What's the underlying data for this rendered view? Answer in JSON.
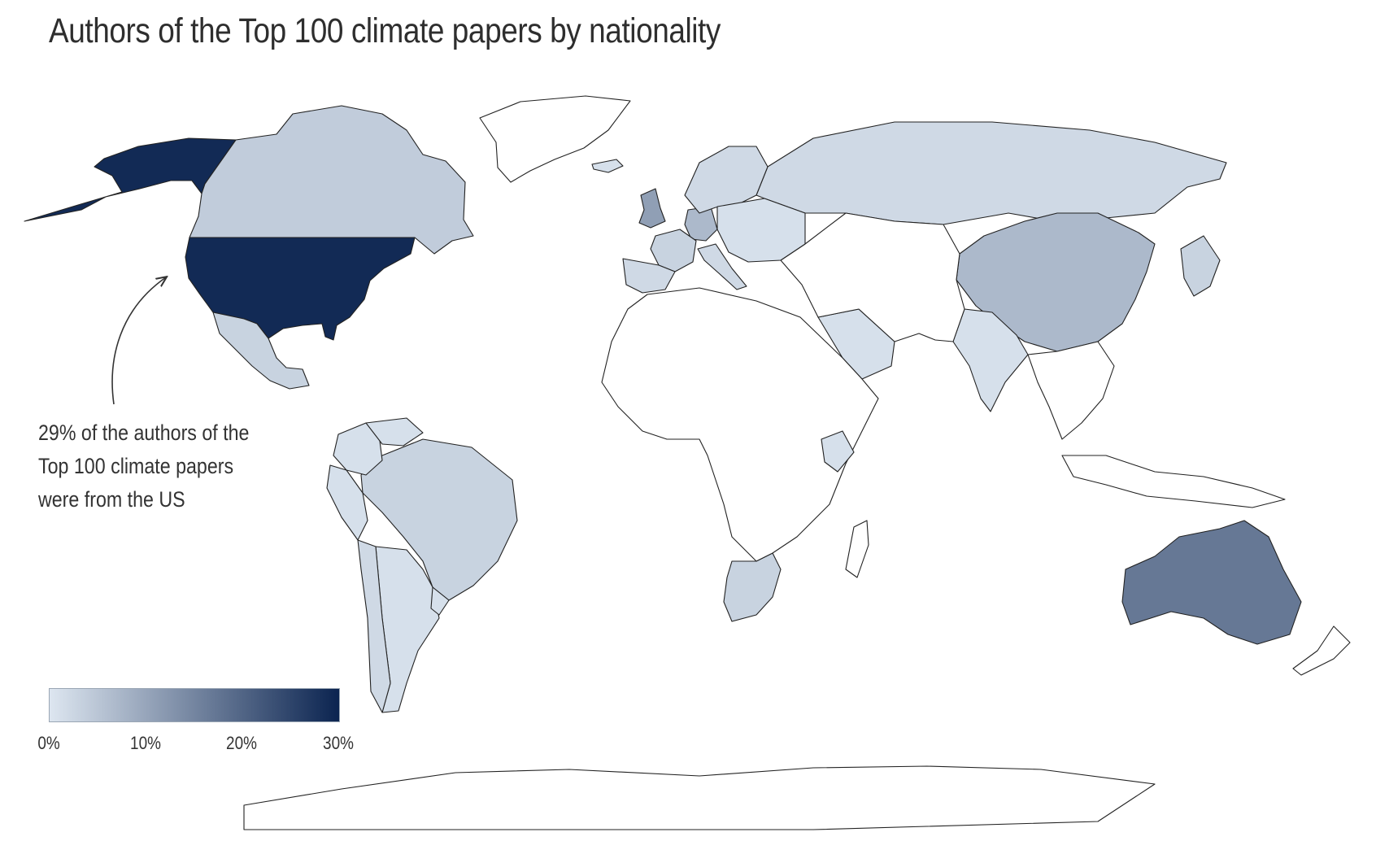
{
  "title": "Authors of the Top 100 climate papers by nationality",
  "annotation": {
    "lines": [
      "29% of the authors of the",
      "Top 100 climate papers",
      "were from the US"
    ]
  },
  "legend": {
    "min": 0,
    "max": 30,
    "color_low": "#dde6f0",
    "color_high": "#0b2450",
    "ticks": [
      {
        "value": 0,
        "label": "0%"
      },
      {
        "value": 10,
        "label": "10%"
      },
      {
        "value": 20,
        "label": "20%"
      },
      {
        "value": 30,
        "label": "30%"
      }
    ]
  },
  "colors": {
    "none": "#ffffff",
    "border": "#222222"
  },
  "regions": [
    {
      "name": "United States",
      "share_pct": 29
    },
    {
      "name": "Alaska (US)",
      "share_pct": 29
    },
    {
      "name": "Canada",
      "share_pct": 4
    },
    {
      "name": "Mexico",
      "share_pct": 3
    },
    {
      "name": "Brazil",
      "share_pct": 3
    },
    {
      "name": "United Kingdom",
      "share_pct": 11
    },
    {
      "name": "Germany",
      "share_pct": 7
    },
    {
      "name": "France",
      "share_pct": 3
    },
    {
      "name": "Spain",
      "share_pct": 2
    },
    {
      "name": "Russia",
      "share_pct": 2
    },
    {
      "name": "China",
      "share_pct": 7
    },
    {
      "name": "Japan",
      "share_pct": 3
    },
    {
      "name": "India",
      "share_pct": 1
    },
    {
      "name": "Australia",
      "share_pct": 17
    },
    {
      "name": "South Africa",
      "share_pct": 3
    },
    {
      "name": "Saudi Arabia",
      "share_pct": 1
    },
    {
      "name": "Argentina",
      "share_pct": 1
    },
    {
      "name": "Chile",
      "share_pct": 2
    },
    {
      "name": "Peru",
      "share_pct": 1
    },
    {
      "name": "Colombia",
      "share_pct": 1
    },
    {
      "name": "Venezuela",
      "share_pct": 1
    },
    {
      "name": "Greenland",
      "share_pct": 0
    },
    {
      "name": "Africa (other)",
      "share_pct": 0
    },
    {
      "name": "Middle East / Central Asia (other)",
      "share_pct": 0
    },
    {
      "name": "Southeast Asia (other)",
      "share_pct": 0
    },
    {
      "name": "Indonesia",
      "share_pct": 0
    },
    {
      "name": "New Zealand",
      "share_pct": 0
    },
    {
      "name": "Madagascar",
      "share_pct": 0
    },
    {
      "name": "Antarctica",
      "share_pct": 0
    },
    {
      "name": "Nordic countries",
      "share_pct": 2
    },
    {
      "name": "Eastern Europe",
      "share_pct": 1
    },
    {
      "name": "Italy",
      "share_pct": 2
    },
    {
      "name": "Iceland",
      "share_pct": 1
    },
    {
      "name": "Uruguay",
      "share_pct": 1
    },
    {
      "name": "Kenya",
      "share_pct": 1
    }
  ]
}
